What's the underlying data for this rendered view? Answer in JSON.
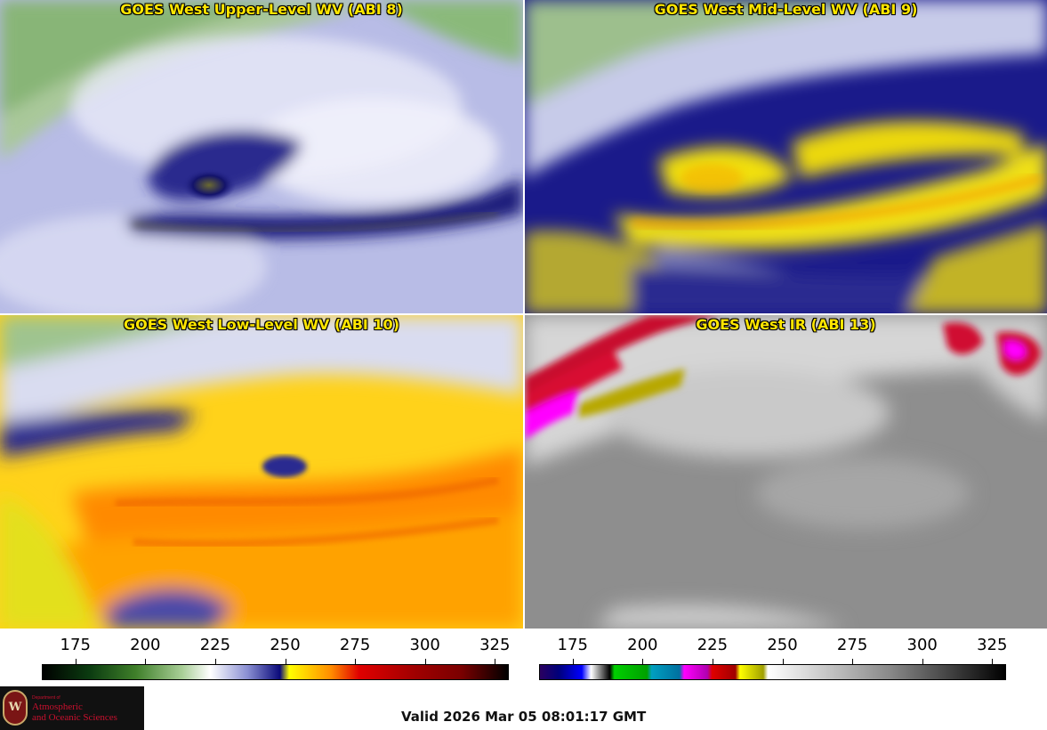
{
  "panels": [
    {
      "title": "GOES West Upper-Level WV (ABI 8)",
      "scheme": "wv-upper"
    },
    {
      "title": "GOES West Mid-Level WV (ABI 9)",
      "scheme": "wv-mid"
    },
    {
      "title": "GOES West Low-Level WV (ABI 10)",
      "scheme": "wv-low"
    },
    {
      "title": "GOES West IR (ABI 13)",
      "scheme": "ir"
    }
  ],
  "colorbars": [
    {
      "name": "wv-colorbar",
      "ticks": [
        "175",
        "200",
        "225",
        "250",
        "275",
        "300",
        "325"
      ],
      "tick_values": [
        175,
        200,
        225,
        250,
        275,
        300,
        325
      ],
      "range": [
        163,
        330
      ],
      "stops": [
        "#000000",
        "#0b3b10",
        "#3f7f2a",
        "#a9cf97",
        "#ffffff",
        "#8a8fd3",
        "#0a0a7a",
        "#ffff00",
        "#ff8c00",
        "#e00000",
        "#7a0000",
        "#000000"
      ]
    },
    {
      "name": "ir-colorbar",
      "ticks": [
        "175",
        "200",
        "225",
        "250",
        "275",
        "300",
        "325"
      ],
      "tick_values": [
        175,
        200,
        225,
        250,
        275,
        300,
        325
      ],
      "range": [
        163,
        330
      ],
      "stops": [
        "#2a0060",
        "#0000ff",
        "#ffffff",
        "#00c000",
        "#00a0c0",
        "#ff00ff",
        "#d00000",
        "#ffff00",
        "#ffffff",
        "#8a8a8a",
        "#000000"
      ]
    }
  ],
  "logo": {
    "seal_letter": "W",
    "dept_line": "Department of",
    "line1": "Atmospheric",
    "line2": "and Oceanic Sciences"
  },
  "valid_time": "Valid 2026 Mar 05 08:01:17 GMT"
}
